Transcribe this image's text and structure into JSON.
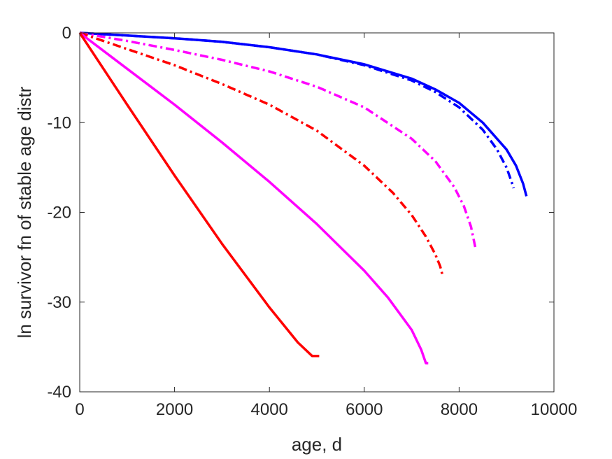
{
  "chart_data": {
    "type": "line",
    "title": "",
    "xlabel": "age, d",
    "ylabel": "ln survivor fn of stable age distr",
    "xlim": [
      0,
      10000
    ],
    "ylim": [
      -40,
      0
    ],
    "xticks": [
      0,
      2000,
      4000,
      6000,
      8000,
      10000
    ],
    "yticks": [
      0,
      -10,
      -20,
      -30,
      -40
    ],
    "xtick_labels": [
      "0",
      "2000",
      "4000",
      "6000",
      "8000",
      "10000"
    ],
    "ytick_labels": [
      "0",
      "-10",
      "-20",
      "-30",
      "-40"
    ],
    "grid": false,
    "legend": "none",
    "series": [
      {
        "color": "#0000ff",
        "dash": "solid",
        "x": [
          0,
          1000,
          2000,
          3000,
          4000,
          5000,
          6000,
          7000,
          7500,
          8000,
          8500,
          9000,
          9200,
          9350,
          9420
        ],
        "y": [
          0,
          -0.3,
          -0.6,
          -1.0,
          -1.6,
          -2.4,
          -3.5,
          -5.1,
          -6.3,
          -7.8,
          -10.0,
          -13.0,
          -14.8,
          -16.8,
          -18.2
        ]
      },
      {
        "color": "#0000ff",
        "dash": "dashdot",
        "x": [
          0,
          1000,
          2000,
          3000,
          4000,
          5000,
          6000,
          7000,
          7500,
          8000,
          8500,
          8800,
          9000,
          9100,
          9150
        ],
        "y": [
          0,
          -0.3,
          -0.6,
          -1.0,
          -1.6,
          -2.4,
          -3.6,
          -5.3,
          -6.6,
          -8.3,
          -10.8,
          -13.0,
          -15.0,
          -16.5,
          -17.3
        ]
      },
      {
        "color": "#ff00ff",
        "dash": "dashdot",
        "x": [
          0,
          1000,
          2000,
          3000,
          4000,
          5000,
          6000,
          7000,
          7500,
          7900,
          8100,
          8250,
          8350
        ],
        "y": [
          0,
          -0.9,
          -1.9,
          -3.0,
          -4.3,
          -6.0,
          -8.3,
          -11.8,
          -14.3,
          -17.2,
          -19.3,
          -21.6,
          -24.1
        ]
      },
      {
        "color": "#ff0000",
        "dash": "dashdot",
        "x": [
          0,
          1000,
          2000,
          3000,
          4000,
          5000,
          6000,
          6600,
          7000,
          7300,
          7500,
          7600,
          7650
        ],
        "y": [
          0,
          -1.8,
          -3.6,
          -5.7,
          -8.0,
          -10.9,
          -14.8,
          -17.8,
          -20.3,
          -22.7,
          -24.7,
          -26.0,
          -27.0
        ]
      },
      {
        "color": "#ff00ff",
        "dash": "solid",
        "x": [
          0,
          1000,
          2000,
          3000,
          4000,
          5000,
          6000,
          6500,
          7000,
          7200,
          7300,
          7350
        ],
        "y": [
          0,
          -4.0,
          -8.0,
          -12.2,
          -16.6,
          -21.3,
          -26.5,
          -29.5,
          -33.1,
          -35.3,
          -36.8,
          -36.8
        ]
      },
      {
        "color": "#ff0000",
        "dash": "solid",
        "x": [
          0,
          1000,
          2000,
          3000,
          4000,
          4600,
          4900,
          4950,
          5050
        ],
        "y": [
          0,
          -8.0,
          -15.9,
          -23.5,
          -30.6,
          -34.5,
          -36.0,
          -36.0,
          -36.0
        ]
      }
    ]
  }
}
